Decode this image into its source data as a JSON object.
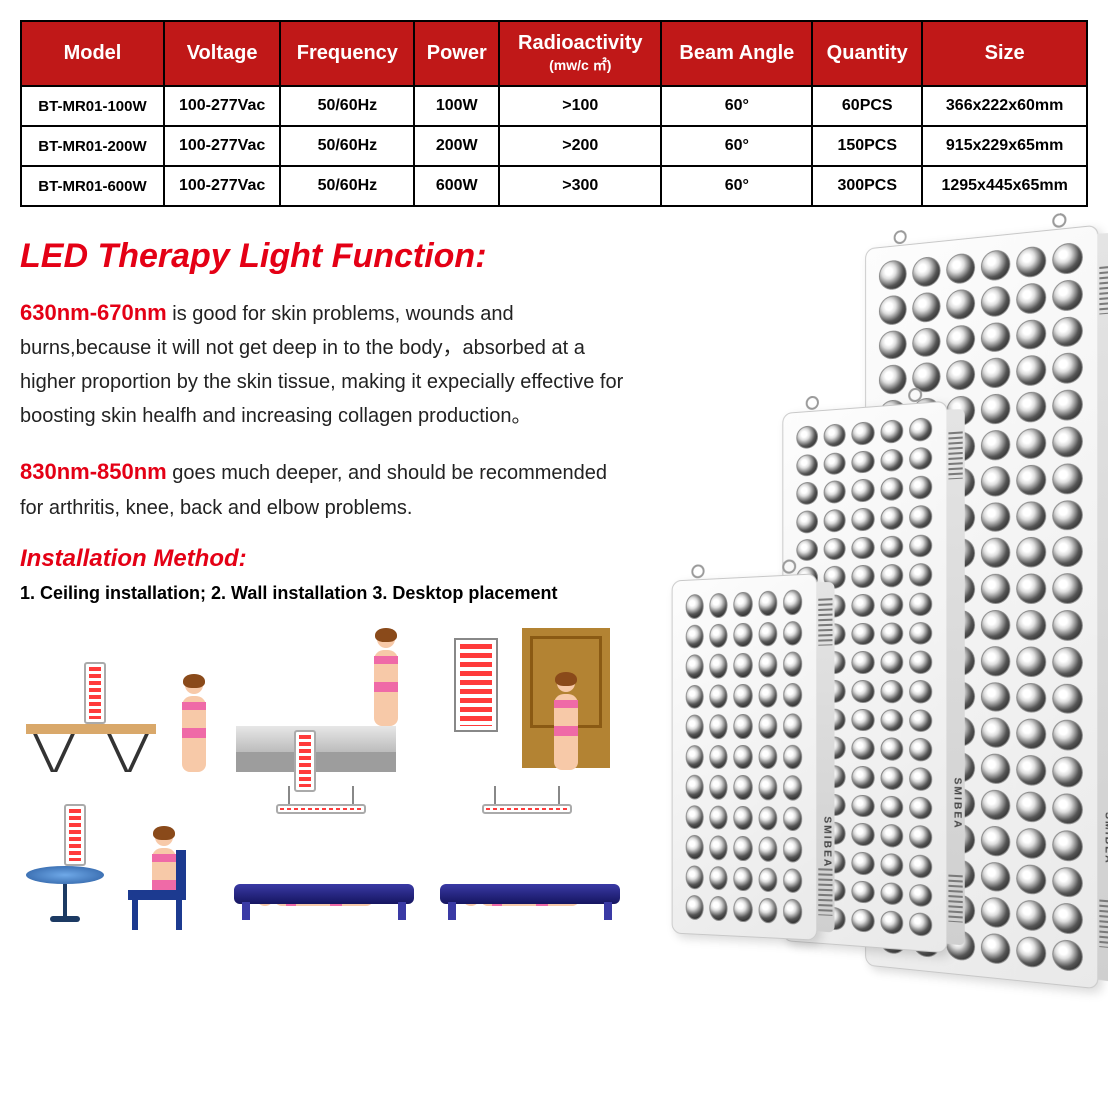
{
  "table": {
    "header_bg": "#c01818",
    "header_color": "#ffffff",
    "border_color": "#000000",
    "columns": [
      "Model",
      "Voltage",
      "Frequency",
      "Power",
      "Radioactivity",
      "Beam Angle",
      "Quantity",
      "Size"
    ],
    "radioactivity_unit": "(mw/c ㎡)",
    "rows": [
      {
        "model": "BT-MR01-100W",
        "voltage": "100-277Vac",
        "freq": "50/60Hz",
        "power": "100W",
        "radio": ">100",
        "angle": "60°",
        "qty": "60PCS",
        "size": "366x222x60mm"
      },
      {
        "model": "BT-MR01-200W",
        "voltage": "100-277Vac",
        "freq": "50/60Hz",
        "power": "200W",
        "radio": ">200",
        "angle": "60°",
        "qty": "150PCS",
        "size": "915x229x65mm"
      },
      {
        "model": "BT-MR01-600W",
        "voltage": "100-277Vac",
        "freq": "50/60Hz",
        "power": "600W",
        "radio": ">300",
        "angle": "60°",
        "qty": "300PCS",
        "size": "1295x445x65mm"
      }
    ]
  },
  "section_title": "LED Therapy Light Function:",
  "wl1_label": "630nm-670nm",
  "wl1_text": " is good for skin problems, wounds and burns,because it will not get deep in to the body，absorbed at a higher proportion by the skin tissue, making it expecially effective for boosting skin healfh and increasing collagen production。",
  "wl2_label": "830nm-850nm",
  "wl2_text": " goes much deeper, and should be recommended for arthritis, knee, back and elbow problems.",
  "install_title": "Installation Method:",
  "install_text": "1. Ceiling installation; 2. Wall installation 3. Desktop placement",
  "brand": "SMIBEA",
  "colors": {
    "accent_red": "#e40015",
    "skin": "#f7c9a8",
    "pink": "#ef6aa7",
    "blue": "#1c3a90",
    "wood": "#d9a86a",
    "door": "#b38333"
  },
  "panels": {
    "large_led_rows": 20,
    "large_led_cols": 6,
    "med_led_rows": 18,
    "med_led_cols": 5,
    "small_led_rows": 11,
    "small_led_cols": 5
  }
}
